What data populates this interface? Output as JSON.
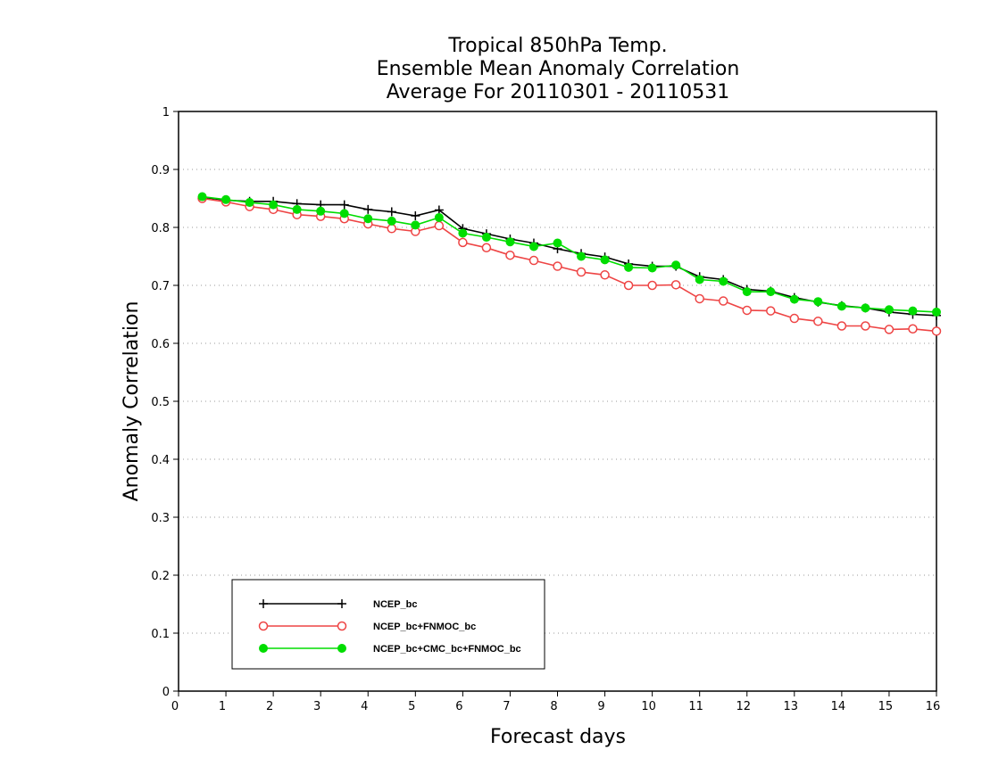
{
  "chart_data": {
    "type": "line",
    "title_lines": [
      "Tropical 850hPa Temp.",
      "Ensemble Mean Anomaly Correlation",
      "Average For 20110301 - 20110531"
    ],
    "xlabel": "Forecast days",
    "ylabel": "Anomaly Correlation",
    "xlim": [
      0,
      16
    ],
    "ylim": [
      0,
      1
    ],
    "x_ticks": [
      0,
      1,
      2,
      3,
      4,
      5,
      6,
      7,
      8,
      9,
      10,
      11,
      12,
      13,
      14,
      15,
      16
    ],
    "y_ticks": [
      0,
      0.1,
      0.2,
      0.3,
      0.4,
      0.5,
      0.6,
      0.7,
      0.8,
      0.9,
      1
    ],
    "grid": "horizontal dotted",
    "legend_position": "bottom-left",
    "x": [
      0.5,
      1,
      1.5,
      2,
      2.5,
      3,
      3.5,
      4,
      4.5,
      5,
      5.5,
      6,
      6.5,
      7,
      7.5,
      8,
      8.5,
      9,
      9.5,
      10,
      10.5,
      11,
      11.5,
      12,
      12.5,
      13,
      13.5,
      14,
      14.5,
      15,
      15.5,
      16
    ],
    "series": [
      {
        "name": "NCEP_bc",
        "color": "#000000",
        "marker": "plus",
        "values": [
          0.852,
          0.847,
          0.845,
          0.845,
          0.841,
          0.839,
          0.839,
          0.831,
          0.827,
          0.82,
          0.83,
          0.798,
          0.789,
          0.78,
          0.773,
          0.763,
          0.755,
          0.749,
          0.737,
          0.733,
          0.733,
          0.715,
          0.71,
          0.693,
          0.69,
          0.679,
          0.671,
          0.665,
          0.661,
          0.654,
          0.65,
          0.648
        ]
      },
      {
        "name": "NCEP_bc+FNMOC_bc",
        "color": "#ee4444",
        "marker": "open-circle",
        "values": [
          0.85,
          0.844,
          0.836,
          0.831,
          0.822,
          0.819,
          0.815,
          0.806,
          0.798,
          0.793,
          0.803,
          0.774,
          0.765,
          0.752,
          0.743,
          0.733,
          0.723,
          0.718,
          0.7,
          0.7,
          0.701,
          0.677,
          0.673,
          0.657,
          0.656,
          0.643,
          0.638,
          0.63,
          0.63,
          0.624,
          0.625,
          0.621
        ]
      },
      {
        "name": "NCEP_bc+CMC_bc+FNMOC_bc",
        "color": "#00dd00",
        "marker": "filled-circle",
        "values": [
          0.853,
          0.848,
          0.843,
          0.839,
          0.831,
          0.828,
          0.824,
          0.815,
          0.811,
          0.804,
          0.817,
          0.79,
          0.783,
          0.775,
          0.767,
          0.773,
          0.75,
          0.744,
          0.731,
          0.73,
          0.735,
          0.71,
          0.707,
          0.689,
          0.689,
          0.676,
          0.672,
          0.664,
          0.661,
          0.658,
          0.656,
          0.654
        ]
      }
    ]
  }
}
